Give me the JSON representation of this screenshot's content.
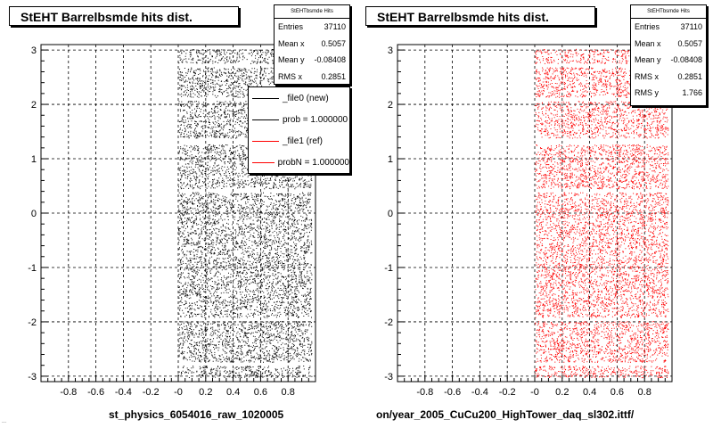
{
  "bottom_labels": {
    "left": "st_physics_6054016_raw_1020005",
    "right": "on/year_2005_CuCu200_HighTower_daq_sl302.ittf/",
    "corner_tiny": "..."
  },
  "colors": {
    "left_points": "#000000",
    "right_points": "#ff0000",
    "frame": "#000000"
  },
  "chart_data": [
    {
      "type": "scatter",
      "title": "StEHT Barrelbsmde hits dist.",
      "xlim": [
        -1,
        1
      ],
      "ylim": [
        -3.1,
        3.1
      ],
      "x_ticks": [
        "-0.8",
        "-0.6",
        "-0.4",
        "-0.2",
        "-0",
        "0.2",
        "0.4",
        "0.6",
        "0.8"
      ],
      "x_tick_values": [
        -0.8,
        -0.6,
        -0.4,
        -0.2,
        0,
        0.2,
        0.4,
        0.6,
        0.8
      ],
      "y_ticks": [
        "-3",
        "-2",
        "-1",
        "0",
        "1",
        "2",
        "3"
      ],
      "y_tick_values": [
        -3,
        -2,
        -1,
        0,
        1,
        2,
        3
      ],
      "grid": true,
      "point_color": "#000000",
      "fill_region": {
        "x": [
          0,
          0.97
        ],
        "y": [
          -3.02,
          3.02
        ]
      },
      "gap_bands_y": [
        2.72,
        2.1,
        1.35,
        1.3,
        0.42,
        -1.95,
        -2.77
      ],
      "stats": {
        "title": "StEHTbsmde Hits",
        "rows": [
          {
            "label": "Entries",
            "value": "37110"
          },
          {
            "label": "Mean x",
            "value": "0.5057"
          },
          {
            "label": "Mean y",
            "value": "-0.08408"
          },
          {
            "label": "RMS x",
            "value": "0.2851"
          }
        ]
      },
      "legend": [
        {
          "label": "_file0 (new)",
          "color": "#000000"
        },
        {
          "label": "prob = 1.000000",
          "color": "#000000"
        },
        {
          "label": "_file1 (ref)",
          "color": "#ff0000"
        },
        {
          "label": "probN = 1.000000",
          "color": "#ff0000"
        }
      ]
    },
    {
      "type": "scatter",
      "title": "StEHT Barrelbsmde hits dist.",
      "xlim": [
        -1,
        1
      ],
      "ylim": [
        -3.1,
        3.1
      ],
      "x_ticks": [
        "-0.8",
        "-0.6",
        "-0.4",
        "-0.2",
        "-0",
        "0.2",
        "0.4",
        "0.6",
        "0.8"
      ],
      "x_tick_values": [
        -0.8,
        -0.6,
        -0.4,
        -0.2,
        0,
        0.2,
        0.4,
        0.6,
        0.8
      ],
      "y_ticks": [
        "-3",
        "-2",
        "-1",
        "0",
        "1",
        "2",
        "3"
      ],
      "y_tick_values": [
        -3,
        -2,
        -1,
        0,
        1,
        2,
        3
      ],
      "grid": true,
      "point_color": "#ff0000",
      "fill_region": {
        "x": [
          0,
          0.97
        ],
        "y": [
          -3.02,
          3.02
        ]
      },
      "gap_bands_y": [
        2.72,
        2.1,
        1.35,
        1.3,
        0.42,
        -1.95,
        -2.77
      ],
      "stats": {
        "title": "StEHTbsmde Hits",
        "rows": [
          {
            "label": "Entries",
            "value": "37110"
          },
          {
            "label": "Mean x",
            "value": "0.5057"
          },
          {
            "label": "Mean y",
            "value": "-0.08408"
          },
          {
            "label": "RMS x",
            "value": "0.2851"
          },
          {
            "label": "RMS y",
            "value": "1.766"
          }
        ]
      }
    }
  ]
}
